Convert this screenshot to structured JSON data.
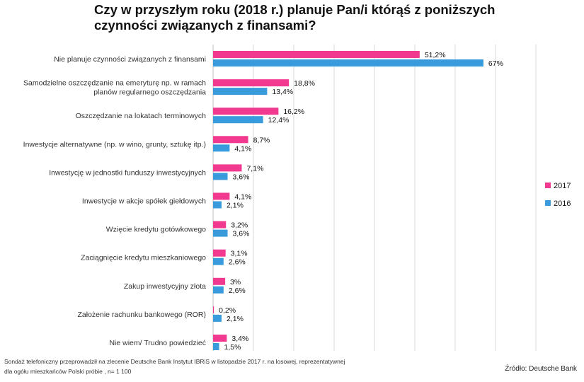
{
  "title": "Czy w przyszłym roku (2018 r.) planuje Pan/i którąś z poniższych czynności związanych z finansami?",
  "footnote": {
    "line1": "Sondaż telefoniczny przeprowadził na zlecenie Deutsche Bank  Instytut IBRiS w listopadzie 2017 r. na losowej, reprezentatywnej",
    "line2": "dla ogółu mieszkańców Polski próbie , n= 1 100"
  },
  "source": "Źródło: Deutsche Bank",
  "colors": {
    "series_2017": "#f0398f",
    "series_2016": "#3a9bdc",
    "gridline": "#d9d9d9",
    "axis": "#bfbfbf"
  },
  "chart_data": {
    "type": "bar",
    "orientation": "horizontal",
    "title": "Czy w przyszłym roku (2018 r.) planuje Pan/i którąś z poniższych czynności związanych z finansami?",
    "xlim": [
      0,
      80
    ],
    "grid": true,
    "legend_position": "right",
    "categories": [
      [
        "Nie planuje czynności związanych z finansami"
      ],
      [
        "Samodzielne oszczędzanie na emeryturę np. w ramach",
        "planów regularnego oszczędzania"
      ],
      [
        "Oszczędzanie na lokatach terminowych"
      ],
      [
        "Inwestycje alternatywne (np. w wino, grunty, sztukę itp.)"
      ],
      [
        "Inwestycję w jednostki funduszy inwestycyjnych"
      ],
      [
        "Inwestycje w akcje spółek giełdowych"
      ],
      [
        "Wzięcie kredytu gotówkowego"
      ],
      [
        "Zaciągnięcie kredytu mieszkaniowego"
      ],
      [
        "Zakup inwestycyjny złota"
      ],
      [
        "Założenie rachunku bankowego (ROR)"
      ],
      [
        "Nie wiem/ Trudno powiedzieć"
      ]
    ],
    "series": [
      {
        "name": "2017",
        "values": [
          51.2,
          18.8,
          16.2,
          8.7,
          7.1,
          4.1,
          3.2,
          3.1,
          3,
          0.2,
          3.4
        ],
        "labels": [
          "51,2%",
          "18,8%",
          "16,2%",
          "8,7%",
          "7,1%",
          "4,1%",
          "3,2%",
          "3,1%",
          "3%",
          "0,2%",
          "3,4%"
        ]
      },
      {
        "name": "2016",
        "values": [
          67,
          13.4,
          12.4,
          4.1,
          3.6,
          2.1,
          3.6,
          2.6,
          2.6,
          2.1,
          1.5
        ],
        "labels": [
          "67%",
          "13,4%",
          "12,4%",
          "4,1%",
          "3,6%",
          "2,1%",
          "3,6%",
          "2,6%",
          "2,6%",
          "2,1%",
          "1,5%"
        ]
      }
    ]
  }
}
